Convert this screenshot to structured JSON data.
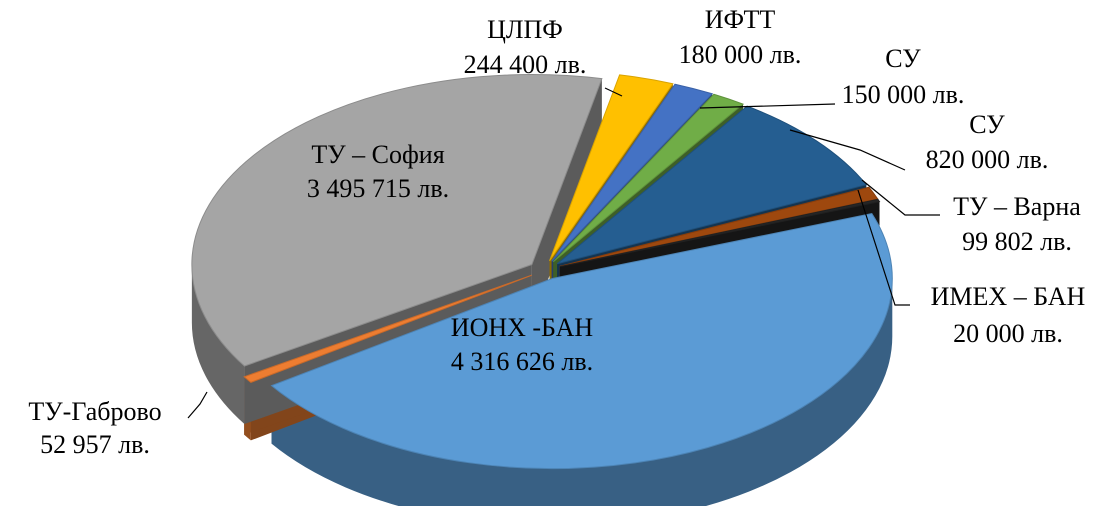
{
  "chart_data": {
    "type": "pie",
    "variant": "3d-exploded",
    "currency": "лв.",
    "slices": [
      {
        "name": "ИОНХ -БАН",
        "value": 4316626,
        "label": "4 316 626 лв.",
        "color": "#5b9bd5"
      },
      {
        "name": "ТУ-Габрово",
        "value": 52957,
        "label": "52 957 лв.",
        "color": "#ed7d31"
      },
      {
        "name": "ТУ – София",
        "value": 3495715,
        "label": "3 495 715 лв.",
        "color": "#a5a5a5"
      },
      {
        "name": "ЦЛПФ",
        "value": 244400,
        "label": "244 400 лв.",
        "color": "#ffc000"
      },
      {
        "name": "ИФТТ",
        "value": 180000,
        "label": "180 000 лв.",
        "color": "#4472c4"
      },
      {
        "name": "СУ",
        "value": 150000,
        "label": "150 000 лв.",
        "color": "#70ad47"
      },
      {
        "name": "СУ",
        "value": 820000,
        "label": "820 000 лв.",
        "color": "#255e91"
      },
      {
        "name": "ТУ – Варна",
        "value": 99802,
        "label": "99 802 лв.",
        "color": "#9e480e"
      },
      {
        "name": "ИМЕХ – БАН",
        "value": 20000,
        "label": "20 000 лв.",
        "color": "#262626"
      }
    ]
  }
}
